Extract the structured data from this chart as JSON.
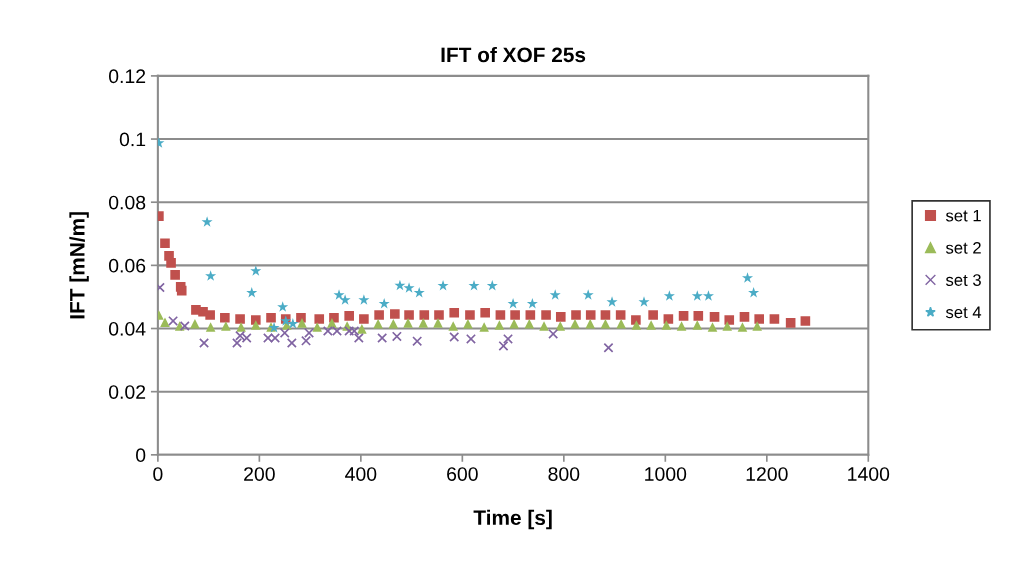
{
  "chart_data": {
    "type": "scatter",
    "title": "IFT of XOF 25s",
    "xlabel": "Time [s]",
    "ylabel": "IFT [mN/m]",
    "xlim": [
      0,
      1400
    ],
    "xticks": [
      0,
      200,
      400,
      600,
      800,
      1000,
      1200,
      1400
    ],
    "ylim": [
      0,
      0.12
    ],
    "yticks": [
      0,
      0.02,
      0.04,
      0.06,
      0.08,
      0.1,
      0.12
    ],
    "grid": "y",
    "legend": "right",
    "series": [
      {
        "name": "set 1",
        "color": "#c0504d",
        "marker": "square",
        "x": [
          2,
          14,
          22,
          26,
          34,
          45,
          47,
          75,
          89,
          103,
          132,
          162,
          193,
          223,
          252,
          282,
          318,
          347,
          377,
          406,
          436,
          467,
          495,
          525,
          554,
          584,
          615,
          645,
          675,
          704,
          734,
          765,
          794,
          824,
          853,
          882,
          912,
          942,
          976,
          1006,
          1036,
          1065,
          1097,
          1126,
          1156,
          1185,
          1215,
          1247,
          1276
        ],
        "values": [
          0.0756,
          0.067,
          0.063,
          0.0608,
          0.057,
          0.0532,
          0.052,
          0.0459,
          0.0453,
          0.0443,
          0.0434,
          0.043,
          0.0427,
          0.0434,
          0.043,
          0.0434,
          0.043,
          0.0434,
          0.044,
          0.043,
          0.0443,
          0.0446,
          0.0443,
          0.0443,
          0.0443,
          0.045,
          0.0443,
          0.045,
          0.0443,
          0.0443,
          0.0443,
          0.0443,
          0.0437,
          0.0443,
          0.0443,
          0.0443,
          0.0443,
          0.0427,
          0.0443,
          0.043,
          0.044,
          0.044,
          0.0437,
          0.0427,
          0.0437,
          0.043,
          0.043,
          0.0418,
          0.0424
        ]
      },
      {
        "name": "set 2",
        "color": "#9bbb59",
        "marker": "triangle",
        "x": [
          2,
          14,
          43,
          73,
          104,
          134,
          164,
          193,
          223,
          254,
          284,
          314,
          343,
          373,
          402,
          434,
          464,
          493,
          523,
          552,
          582,
          611,
          643,
          673,
          702,
          732,
          761,
          793,
          822,
          852,
          882,
          913,
          943,
          972,
          1002,
          1032,
          1063,
          1093,
          1122,
          1152,
          1181
        ],
        "values": [
          0.0443,
          0.042,
          0.0408,
          0.0415,
          0.0405,
          0.0408,
          0.0405,
          0.0411,
          0.0405,
          0.0411,
          0.0418,
          0.0405,
          0.0418,
          0.0408,
          0.0399,
          0.0415,
          0.0415,
          0.0418,
          0.0418,
          0.0418,
          0.0408,
          0.0415,
          0.0405,
          0.0411,
          0.0415,
          0.0415,
          0.0408,
          0.0408,
          0.0415,
          0.0415,
          0.0415,
          0.0415,
          0.0411,
          0.0411,
          0.0411,
          0.0408,
          0.0411,
          0.0405,
          0.0408,
          0.0405,
          0.0408
        ]
      },
      {
        "name": "set 3",
        "color": "#8064a2",
        "marker": "cross",
        "x": [
          4,
          30,
          53,
          91,
          156,
          162,
          175,
          217,
          231,
          250,
          264,
          292,
          298,
          335,
          353,
          377,
          387,
          396,
          442,
          471,
          511,
          584,
          617,
          681,
          690,
          779,
          888
        ],
        "values": [
          0.053,
          0.0424,
          0.0408,
          0.0354,
          0.0354,
          0.0377,
          0.037,
          0.037,
          0.037,
          0.0386,
          0.0354,
          0.0361,
          0.0386,
          0.0392,
          0.0392,
          0.0392,
          0.0392,
          0.037,
          0.037,
          0.0375,
          0.036,
          0.0373,
          0.0367,
          0.0345,
          0.0367,
          0.0383,
          0.0339
        ]
      },
      {
        "name": "set 4",
        "color": "#4bacc6",
        "marker": "star",
        "x": [
          2,
          97,
          104,
          185,
          193,
          229,
          246,
          252,
          266,
          357,
          369,
          406,
          446,
          477,
          495,
          515,
          562,
          623,
          659,
          700,
          738,
          783,
          848,
          895,
          958,
          1008,
          1063,
          1085,
          1162,
          1174
        ],
        "values": [
          0.0987,
          0.0737,
          0.0566,
          0.0513,
          0.0582,
          0.0402,
          0.0468,
          0.0424,
          0.0415,
          0.0506,
          0.049,
          0.049,
          0.0478,
          0.0536,
          0.0528,
          0.0513,
          0.0535,
          0.0535,
          0.0535,
          0.0478,
          0.0478,
          0.0506,
          0.0506,
          0.0484,
          0.0484,
          0.0503,
          0.0503,
          0.0503,
          0.056,
          0.0513
        ]
      }
    ]
  }
}
